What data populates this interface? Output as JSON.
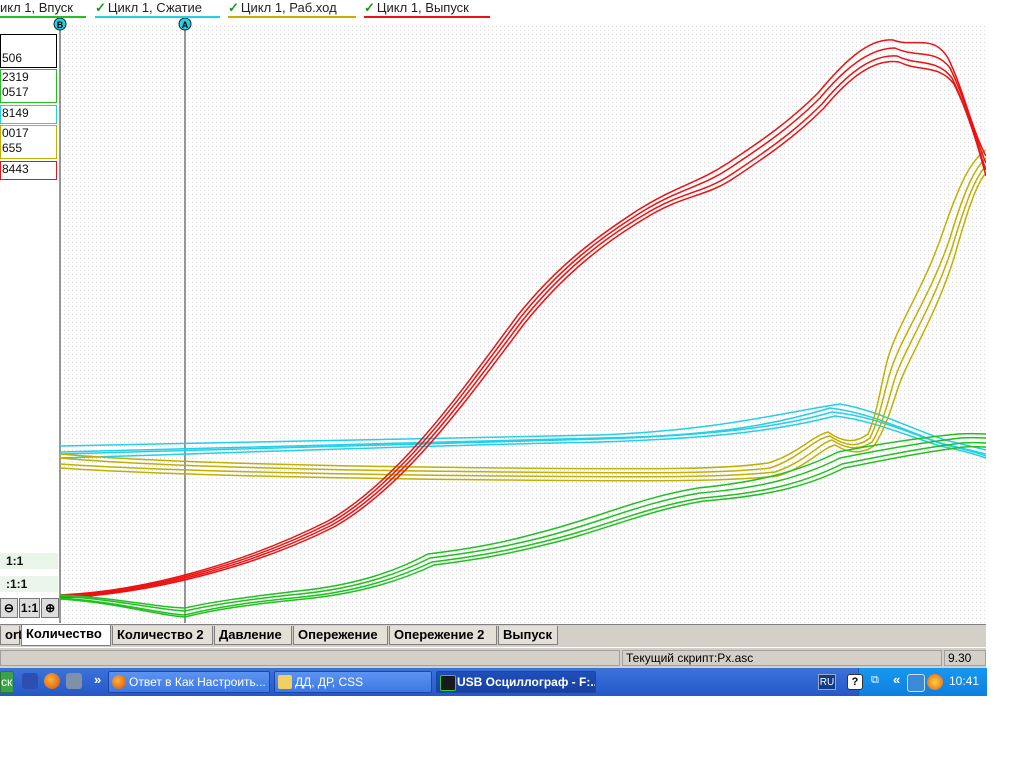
{
  "legend": {
    "items": [
      {
        "label": "икл 1, Впуск",
        "color": "#1fc21f",
        "checked": false
      },
      {
        "label": "Цикл 1, Сжатие",
        "color": "#22d0e8",
        "checked": true
      },
      {
        "label": "Цикл 1, Раб.ход",
        "color": "#c0b000",
        "checked": true
      },
      {
        "label": "Цикл 1, Выпуск",
        "color": "#ee1111",
        "checked": true
      }
    ]
  },
  "cursors": {
    "b_label": "B",
    "a_label": "A"
  },
  "values": {
    "box0": [
      "506"
    ],
    "box_green": [
      "2319",
      "0517"
    ],
    "box_cyan": [
      "8149"
    ],
    "box_yellow": [
      "0017",
      "655"
    ],
    "box_red": [
      "8443"
    ]
  },
  "scales": {
    "scale1": "1:1",
    "scale2": ":1:1"
  },
  "zoom": {
    "minus": "⊖",
    "reset": "1:1",
    "plus": "⊕"
  },
  "tabs": [
    {
      "label": "ort",
      "active": false
    },
    {
      "label": "Количество",
      "active": true
    },
    {
      "label": "Количество 2",
      "active": false
    },
    {
      "label": "Давление",
      "active": false
    },
    {
      "label": "Опережение",
      "active": false
    },
    {
      "label": "Опережение 2",
      "active": false
    },
    {
      "label": "Выпуск",
      "active": false
    }
  ],
  "status": {
    "script": "Текущий скрипт:Px.asc",
    "version": "9.30"
  },
  "taskbar": {
    "start_label": "ск",
    "more": "»",
    "windows": [
      {
        "label": "Ответ в Как Настроить...",
        "icon": "firefox-icon",
        "active": false
      },
      {
        "label": "ДД, ДР, CSS",
        "icon": "folder-icon",
        "active": false
      },
      {
        "label": "USB Осциллограф - F:...",
        "icon": "oscilloscope-icon",
        "active": true
      }
    ],
    "lang": "RU",
    "tray_more": "«",
    "clock": "10:41"
  },
  "colors": {
    "green": "#1fc21f",
    "cyan": "#22d0e8",
    "yellow": "#c0b000",
    "red": "#ee1111"
  }
}
